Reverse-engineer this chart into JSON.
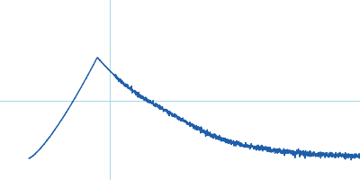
{
  "line_color": "#1f5faa",
  "background_color": "#ffffff",
  "grid_color": "#add8e6",
  "linewidth": 1.0,
  "figsize": [
    4.0,
    2.0
  ],
  "dpi": 100,
  "noise_level": 0.006,
  "ylim": [
    0.0,
    1.0
  ],
  "xlim": [
    0.0,
    1.0
  ],
  "vline_x": 0.305,
  "hline_y": 0.44
}
